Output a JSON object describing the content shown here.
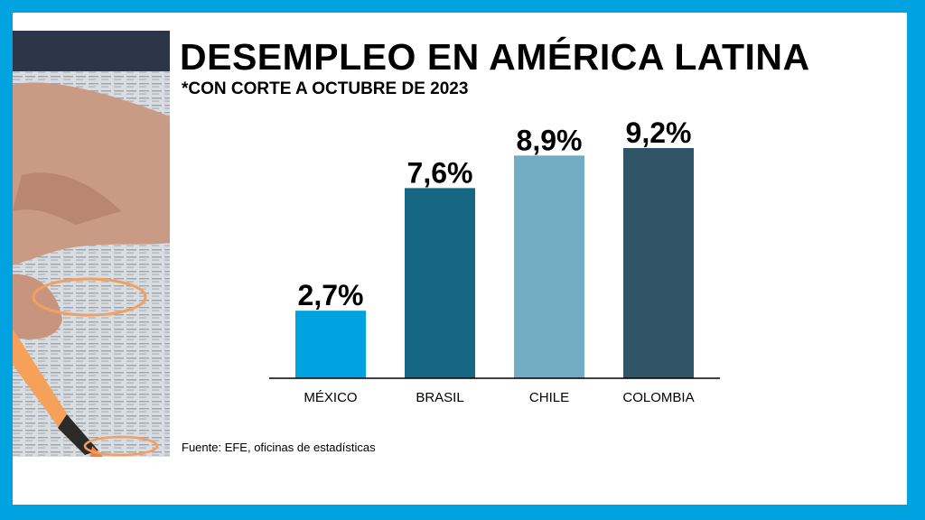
{
  "title": "DESEMPLEO EN AMÉRICA LATINA",
  "subtitle": "*CON CORTE A OCTUBRE DE 2023",
  "source": "Fuente: EFE, oficinas de estadísticas",
  "chart_data": {
    "type": "bar",
    "categories": [
      "MÉXICO",
      "BRASIL",
      "CHILE",
      "COLOMBIA"
    ],
    "values": [
      2.7,
      7.6,
      8.9,
      9.2
    ],
    "value_labels": [
      "2,7%",
      "7,6%",
      "8,9%",
      "9,2%"
    ],
    "colors": [
      "#00a3e0",
      "#156783",
      "#72adc4",
      "#2f5566"
    ],
    "title": "DESEMPLEO EN AMÉRICA LATINA",
    "subtitle": "*CON CORTE A OCTUBRE DE 2023",
    "xlabel": "",
    "ylabel": "",
    "ylim": [
      0,
      9.2
    ],
    "grid": false,
    "legend": "none"
  },
  "colors": {
    "frame": "#00a3e0",
    "background": "#ffffff",
    "axis": "#000000"
  }
}
